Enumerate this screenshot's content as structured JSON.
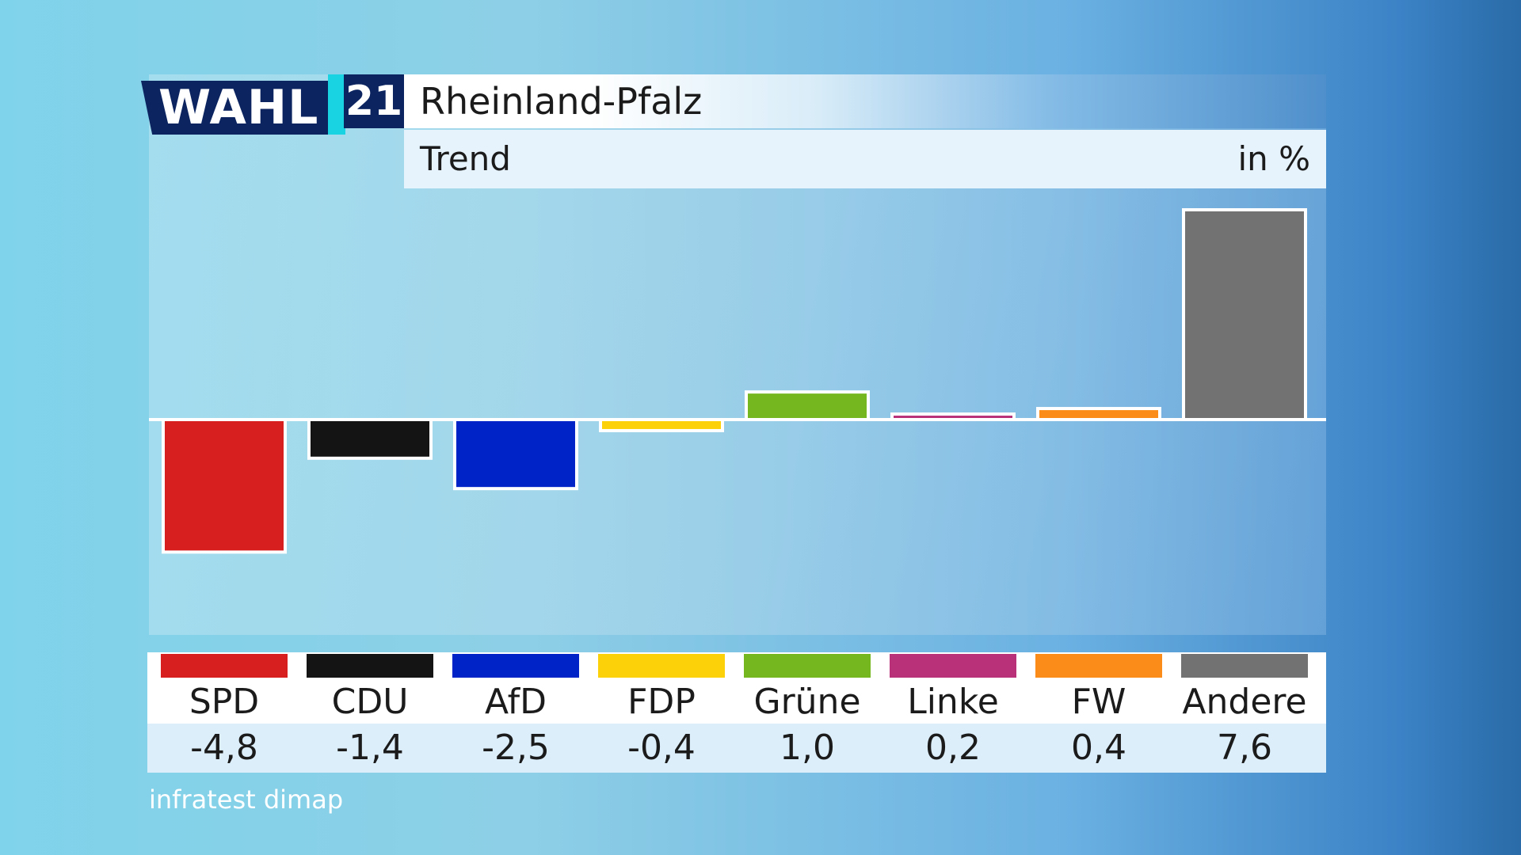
{
  "header": {
    "logo_wahl": "WAHL",
    "logo_number": "21",
    "title": "Rheinland-Pfalz",
    "subtitle": "Trend",
    "unit": "in %"
  },
  "source": "infratest dimap",
  "chart_data": {
    "type": "bar",
    "title": "Rheinland-Pfalz",
    "subtitle": "Trend",
    "ylabel": "in %",
    "xlabel": "",
    "categories": [
      "SPD",
      "CDU",
      "AfD",
      "FDP",
      "Grüne",
      "Linke",
      "FW",
      "Andere"
    ],
    "values": [
      -4.8,
      -1.4,
      -2.5,
      -0.4,
      1.0,
      0.2,
      0.4,
      7.6
    ],
    "value_labels": [
      "-4,8",
      "-1,4",
      "-2,5",
      "-0,4",
      "1,0",
      "0,2",
      "0,4",
      "7,6"
    ],
    "colors": [
      "#d71f1f",
      "#141414",
      "#0023c8",
      "#fdd10a",
      "#74b71f",
      "#b93179",
      "#fb8c19",
      "#727272"
    ],
    "ylim": [
      -7.6,
      7.6
    ],
    "grid": false,
    "legend": "bottom"
  }
}
